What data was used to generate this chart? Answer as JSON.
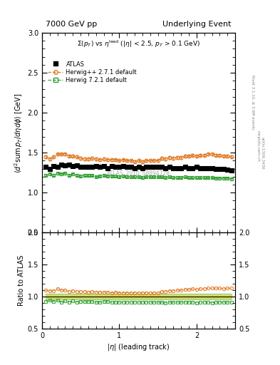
{
  "title_left": "7000 GeV pp",
  "title_right": "Underlying Event",
  "subtitle": "$\\Sigma(p_T)$ vs $\\eta^{\\mathrm{lead}}$ ($|\\eta|$ < 2.5, $p_T$ > 0.1 GeV)",
  "ylabel_main": "$\\langle d^2 \\mathrm{sum}\\, p_T/d\\eta d\\phi \\rangle$ [GeV]",
  "ylabel_ratio": "Ratio to ATLAS",
  "xlabel": "$|\\eta|$ (leading track)",
  "watermark": "ATLAS_2010_S8894728",
  "rivet_text": "Rivet 3.1.10, ≥ 3.6M events",
  "arxiv_text": "arXiv:1306.3436",
  "mcplots_text": "mcplots.cern.ch",
  "ylim_main": [
    0.5,
    3.0
  ],
  "ylim_ratio": [
    0.5,
    2.0
  ],
  "xlim": [
    0.0,
    2.5
  ],
  "herwig_pp_color": "#e07820",
  "herwig_7_color": "#30a030",
  "atlas_x": [
    0.05,
    0.1,
    0.15,
    0.2,
    0.25,
    0.3,
    0.35,
    0.4,
    0.45,
    0.5,
    0.55,
    0.6,
    0.65,
    0.7,
    0.75,
    0.8,
    0.85,
    0.9,
    0.95,
    1.0,
    1.05,
    1.1,
    1.15,
    1.2,
    1.25,
    1.3,
    1.35,
    1.4,
    1.45,
    1.5,
    1.55,
    1.6,
    1.65,
    1.7,
    1.75,
    1.8,
    1.85,
    1.9,
    1.95,
    2.0,
    2.05,
    2.1,
    2.15,
    2.2,
    2.25,
    2.3,
    2.35,
    2.4,
    2.45
  ],
  "atlas_y": [
    1.32,
    1.3,
    1.33,
    1.32,
    1.35,
    1.34,
    1.35,
    1.33,
    1.34,
    1.32,
    1.32,
    1.32,
    1.32,
    1.33,
    1.32,
    1.33,
    1.31,
    1.33,
    1.32,
    1.32,
    1.33,
    1.32,
    1.32,
    1.31,
    1.32,
    1.31,
    1.32,
    1.32,
    1.32,
    1.32,
    1.32,
    1.31,
    1.32,
    1.31,
    1.31,
    1.31,
    1.32,
    1.31,
    1.31,
    1.32,
    1.31,
    1.31,
    1.31,
    1.31,
    1.3,
    1.3,
    1.3,
    1.29,
    1.28
  ],
  "atlas_yerr": [
    0.015,
    0.012,
    0.012,
    0.012,
    0.012,
    0.012,
    0.012,
    0.012,
    0.012,
    0.012,
    0.012,
    0.012,
    0.012,
    0.012,
    0.012,
    0.012,
    0.012,
    0.012,
    0.012,
    0.012,
    0.012,
    0.012,
    0.012,
    0.012,
    0.012,
    0.012,
    0.012,
    0.012,
    0.012,
    0.012,
    0.012,
    0.012,
    0.012,
    0.012,
    0.012,
    0.012,
    0.012,
    0.012,
    0.012,
    0.012,
    0.012,
    0.012,
    0.012,
    0.012,
    0.012,
    0.012,
    0.012,
    0.012,
    0.012
  ],
  "hpp_x": [
    0.05,
    0.1,
    0.15,
    0.2,
    0.25,
    0.3,
    0.35,
    0.4,
    0.45,
    0.5,
    0.55,
    0.6,
    0.65,
    0.7,
    0.75,
    0.8,
    0.85,
    0.9,
    0.95,
    1.0,
    1.05,
    1.1,
    1.15,
    1.2,
    1.25,
    1.3,
    1.35,
    1.4,
    1.45,
    1.5,
    1.55,
    1.6,
    1.65,
    1.7,
    1.75,
    1.8,
    1.85,
    1.9,
    1.95,
    2.0,
    2.05,
    2.1,
    2.15,
    2.2,
    2.25,
    2.3,
    2.35,
    2.4,
    2.45
  ],
  "hpp_y": [
    1.45,
    1.42,
    1.45,
    1.48,
    1.48,
    1.48,
    1.46,
    1.46,
    1.45,
    1.43,
    1.42,
    1.42,
    1.43,
    1.42,
    1.41,
    1.42,
    1.41,
    1.41,
    1.41,
    1.4,
    1.41,
    1.4,
    1.4,
    1.39,
    1.4,
    1.39,
    1.4,
    1.4,
    1.4,
    1.4,
    1.43,
    1.42,
    1.44,
    1.43,
    1.44,
    1.44,
    1.46,
    1.46,
    1.47,
    1.46,
    1.47,
    1.47,
    1.48,
    1.48,
    1.47,
    1.47,
    1.46,
    1.46,
    1.45
  ],
  "hpp_yerr": [
    0.018,
    0.015,
    0.015,
    0.015,
    0.015,
    0.015,
    0.015,
    0.015,
    0.015,
    0.015,
    0.015,
    0.015,
    0.015,
    0.015,
    0.015,
    0.015,
    0.015,
    0.015,
    0.015,
    0.015,
    0.015,
    0.015,
    0.015,
    0.015,
    0.015,
    0.015,
    0.015,
    0.015,
    0.015,
    0.015,
    0.015,
    0.015,
    0.015,
    0.015,
    0.015,
    0.015,
    0.015,
    0.015,
    0.015,
    0.015,
    0.015,
    0.015,
    0.015,
    0.015,
    0.015,
    0.015,
    0.015,
    0.015,
    0.015
  ],
  "h7_x": [
    0.05,
    0.1,
    0.15,
    0.2,
    0.25,
    0.3,
    0.35,
    0.4,
    0.45,
    0.5,
    0.55,
    0.6,
    0.65,
    0.7,
    0.75,
    0.8,
    0.85,
    0.9,
    0.95,
    1.0,
    1.05,
    1.1,
    1.15,
    1.2,
    1.25,
    1.3,
    1.35,
    1.4,
    1.45,
    1.5,
    1.55,
    1.6,
    1.65,
    1.7,
    1.75,
    1.8,
    1.85,
    1.9,
    1.95,
    2.0,
    2.05,
    2.1,
    2.15,
    2.2,
    2.25,
    2.3,
    2.35,
    2.4,
    2.45
  ],
  "h7_y": [
    1.22,
    1.23,
    1.22,
    1.24,
    1.23,
    1.24,
    1.22,
    1.23,
    1.22,
    1.21,
    1.22,
    1.22,
    1.22,
    1.2,
    1.21,
    1.22,
    1.21,
    1.21,
    1.21,
    1.2,
    1.21,
    1.2,
    1.2,
    1.2,
    1.2,
    1.19,
    1.2,
    1.2,
    1.2,
    1.2,
    1.2,
    1.19,
    1.2,
    1.19,
    1.19,
    1.19,
    1.2,
    1.19,
    1.19,
    1.19,
    1.19,
    1.19,
    1.19,
    1.19,
    1.18,
    1.18,
    1.18,
    1.18,
    1.17
  ],
  "h7_yerr": [
    0.015,
    0.013,
    0.013,
    0.013,
    0.013,
    0.013,
    0.013,
    0.013,
    0.013,
    0.013,
    0.013,
    0.013,
    0.013,
    0.013,
    0.013,
    0.013,
    0.013,
    0.013,
    0.013,
    0.013,
    0.013,
    0.013,
    0.013,
    0.013,
    0.013,
    0.013,
    0.013,
    0.013,
    0.013,
    0.013,
    0.013,
    0.013,
    0.013,
    0.013,
    0.013,
    0.013,
    0.013,
    0.013,
    0.013,
    0.013,
    0.013,
    0.013,
    0.013,
    0.013,
    0.013,
    0.013,
    0.013,
    0.013,
    0.013
  ],
  "hpp_band_color": "#f0d840",
  "h7_band_color": "#70c870",
  "hpp_ratio_y": [
    1.1,
    1.09,
    1.09,
    1.12,
    1.1,
    1.1,
    1.08,
    1.09,
    1.08,
    1.08,
    1.08,
    1.07,
    1.08,
    1.07,
    1.07,
    1.07,
    1.07,
    1.06,
    1.07,
    1.06,
    1.06,
    1.06,
    1.06,
    1.06,
    1.06,
    1.06,
    1.06,
    1.06,
    1.06,
    1.06,
    1.08,
    1.08,
    1.09,
    1.09,
    1.1,
    1.1,
    1.11,
    1.11,
    1.12,
    1.11,
    1.12,
    1.12,
    1.13,
    1.13,
    1.13,
    1.13,
    1.12,
    1.13,
    1.13
  ],
  "h7_ratio_y": [
    0.92,
    0.94,
    0.92,
    0.94,
    0.91,
    0.93,
    0.91,
    0.93,
    0.91,
    0.92,
    0.92,
    0.92,
    0.92,
    0.91,
    0.91,
    0.92,
    0.92,
    0.91,
    0.91,
    0.91,
    0.91,
    0.91,
    0.91,
    0.91,
    0.91,
    0.91,
    0.91,
    0.91,
    0.91,
    0.91,
    0.91,
    0.9,
    0.91,
    0.91,
    0.91,
    0.91,
    0.91,
    0.91,
    0.91,
    0.9,
    0.91,
    0.91,
    0.91,
    0.9,
    0.91,
    0.91,
    0.91,
    0.91,
    0.91
  ]
}
